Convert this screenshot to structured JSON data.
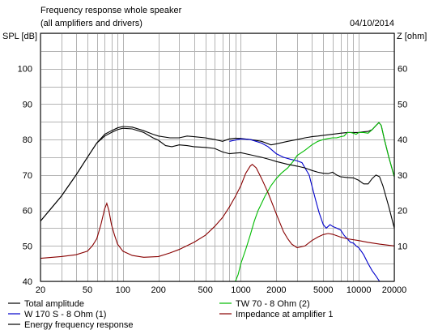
{
  "chart_data": {
    "type": "line",
    "title": "Frequency response whole speaker",
    "subtitle": "(all amplifiers and drivers)",
    "date": "04/10/2014",
    "ylabel_left": "SPL [dB]",
    "ylabel_right": "Z [ohm]",
    "x_scale": "log",
    "xlim": [
      20,
      20000
    ],
    "ylim_left": [
      40,
      110
    ],
    "ylim_right": [
      0,
      70
    ],
    "grid": true,
    "x_ticks": [
      {
        "value": 20,
        "label": "20"
      },
      {
        "value": 50,
        "label": "50"
      },
      {
        "value": 100,
        "label": "100"
      },
      {
        "value": 200,
        "label": "200"
      },
      {
        "value": 500,
        "label": "500"
      },
      {
        "value": 1000,
        "label": "1000"
      },
      {
        "value": 2000,
        "label": "2000"
      },
      {
        "value": 5000,
        "label": "5000"
      },
      {
        "value": 10000,
        "label": "10000"
      },
      {
        "value": 20000,
        "label": "20000"
      }
    ],
    "y_ticks_left": [
      {
        "value": 40,
        "label": "40"
      },
      {
        "value": 50,
        "label": "50"
      },
      {
        "value": 60,
        "label": "60"
      },
      {
        "value": 70,
        "label": "70"
      },
      {
        "value": 80,
        "label": "80"
      },
      {
        "value": 90,
        "label": "90"
      },
      {
        "value": 100,
        "label": "100"
      }
    ],
    "y_ticks_right": [
      {
        "value": 10,
        "label": "10"
      },
      {
        "value": 20,
        "label": "20"
      },
      {
        "value": 30,
        "label": "30"
      },
      {
        "value": 40,
        "label": "40"
      },
      {
        "value": 50,
        "label": "50"
      },
      {
        "value": 60,
        "label": "60"
      }
    ],
    "legend_placement": "bottom",
    "series": [
      {
        "name": "Total amplitude",
        "color": "#000000",
        "axis": "left",
        "points": [
          [
            20,
            57
          ],
          [
            30,
            64
          ],
          [
            40,
            70
          ],
          [
            50,
            75
          ],
          [
            60,
            79
          ],
          [
            70,
            81.5
          ],
          [
            80,
            82.5
          ],
          [
            90,
            83.3
          ],
          [
            100,
            83.7
          ],
          [
            120,
            83.5
          ],
          [
            150,
            82.5
          ],
          [
            180,
            81.5
          ],
          [
            200,
            81
          ],
          [
            250,
            80.5
          ],
          [
            300,
            80.5
          ],
          [
            350,
            81
          ],
          [
            400,
            80.8
          ],
          [
            500,
            80.5
          ],
          [
            600,
            80
          ],
          [
            700,
            79.5
          ],
          [
            800,
            80.2
          ],
          [
            900,
            80.4
          ],
          [
            1000,
            80.3
          ],
          [
            1200,
            80
          ],
          [
            1500,
            79.5
          ],
          [
            1800,
            78.5
          ],
          [
            2000,
            78.8
          ],
          [
            2500,
            79.5
          ],
          [
            3000,
            80
          ],
          [
            3500,
            80.5
          ],
          [
            4000,
            80.8
          ],
          [
            4500,
            81
          ],
          [
            5000,
            81.2
          ],
          [
            6000,
            81.5
          ],
          [
            7000,
            81.8
          ],
          [
            8000,
            82
          ],
          [
            9000,
            82
          ],
          [
            10000,
            82
          ],
          [
            11000,
            82.2
          ],
          [
            12000,
            82.3
          ],
          [
            13000,
            82.8
          ],
          [
            14000,
            84
          ],
          [
            14800,
            84.8
          ],
          [
            15500,
            84
          ],
          [
            16500,
            80
          ],
          [
            18000,
            75
          ],
          [
            20000,
            69.5
          ]
        ]
      },
      {
        "name": "W 170 S - 8 Ohm (1)",
        "color": "#0000cc",
        "axis": "left",
        "points": [
          [
            800,
            79.5
          ],
          [
            1000,
            80.2
          ],
          [
            1200,
            80
          ],
          [
            1500,
            79
          ],
          [
            1700,
            78
          ],
          [
            2000,
            76
          ],
          [
            2300,
            75
          ],
          [
            2600,
            74.5
          ],
          [
            3000,
            74
          ],
          [
            3300,
            73.5
          ],
          [
            3500,
            72
          ],
          [
            3800,
            70
          ],
          [
            4000,
            67
          ],
          [
            4300,
            63
          ],
          [
            4600,
            59.5
          ],
          [
            5000,
            56
          ],
          [
            5300,
            55
          ],
          [
            5700,
            56
          ],
          [
            6000,
            55.5
          ],
          [
            6500,
            55
          ],
          [
            7000,
            54.5
          ],
          [
            7500,
            53
          ],
          [
            8000,
            52
          ],
          [
            8500,
            51
          ],
          [
            9000,
            50.8
          ],
          [
            9500,
            50
          ],
          [
            10000,
            49.5
          ],
          [
            10500,
            48.5
          ],
          [
            11000,
            47.5
          ],
          [
            12000,
            45
          ],
          [
            13000,
            43
          ],
          [
            14000,
            41.5
          ],
          [
            15000,
            40
          ]
        ]
      },
      {
        "name": "TW 70 - 8 Ohm (2)",
        "color": "#00bb00",
        "axis": "left",
        "points": [
          [
            20,
            40
          ],
          [
            900,
            40
          ],
          [
            950,
            42
          ],
          [
            1000,
            45
          ],
          [
            1100,
            49
          ],
          [
            1200,
            53
          ],
          [
            1300,
            57
          ],
          [
            1400,
            60
          ],
          [
            1500,
            62
          ],
          [
            1600,
            64
          ],
          [
            1800,
            67
          ],
          [
            2000,
            69
          ],
          [
            2200,
            70.5
          ],
          [
            2500,
            72
          ],
          [
            2800,
            74
          ],
          [
            3000,
            75.5
          ],
          [
            3500,
            77
          ],
          [
            4000,
            78.5
          ],
          [
            4500,
            79.5
          ],
          [
            5000,
            80
          ],
          [
            5500,
            80.3
          ],
          [
            6000,
            80.5
          ],
          [
            6500,
            80.5
          ],
          [
            7000,
            80.8
          ],
          [
            7500,
            81
          ],
          [
            8000,
            82
          ],
          [
            8500,
            82
          ],
          [
            9000,
            81.8
          ],
          [
            9500,
            81.5
          ],
          [
            10000,
            82
          ],
          [
            11000,
            82
          ],
          [
            12000,
            81.8
          ],
          [
            13000,
            82.8
          ],
          [
            14000,
            84
          ],
          [
            14800,
            84.8
          ],
          [
            15500,
            84
          ],
          [
            16500,
            80
          ],
          [
            18000,
            75
          ],
          [
            20000,
            69.5
          ]
        ]
      },
      {
        "name": "Impedance at amplifier 1",
        "color": "#880000",
        "axis": "right",
        "points": [
          [
            20,
            6.5
          ],
          [
            30,
            7
          ],
          [
            40,
            7.5
          ],
          [
            50,
            8.5
          ],
          [
            55,
            10
          ],
          [
            60,
            12
          ],
          [
            65,
            16
          ],
          [
            70,
            20.5
          ],
          [
            73,
            22
          ],
          [
            76,
            20
          ],
          [
            80,
            16
          ],
          [
            85,
            13
          ],
          [
            90,
            10.5
          ],
          [
            100,
            8.5
          ],
          [
            120,
            7.3
          ],
          [
            150,
            6.8
          ],
          [
            200,
            7
          ],
          [
            250,
            8
          ],
          [
            300,
            9
          ],
          [
            400,
            11
          ],
          [
            500,
            13
          ],
          [
            600,
            15.5
          ],
          [
            700,
            18
          ],
          [
            800,
            21
          ],
          [
            900,
            24
          ],
          [
            1000,
            27
          ],
          [
            1100,
            30.5
          ],
          [
            1200,
            32.5
          ],
          [
            1250,
            33
          ],
          [
            1350,
            32
          ],
          [
            1500,
            29
          ],
          [
            1700,
            25
          ],
          [
            2000,
            19
          ],
          [
            2300,
            14
          ],
          [
            2500,
            12
          ],
          [
            2700,
            10.5
          ],
          [
            3000,
            9.5
          ],
          [
            3500,
            10
          ],
          [
            4000,
            11.5
          ],
          [
            4500,
            12.5
          ],
          [
            5000,
            13.2
          ],
          [
            5500,
            13.5
          ],
          [
            6000,
            13.3
          ],
          [
            7000,
            12.5
          ],
          [
            8000,
            12
          ],
          [
            10000,
            11.5
          ],
          [
            12000,
            11
          ],
          [
            15000,
            10.5
          ],
          [
            20000,
            10
          ]
        ]
      },
      {
        "name": "Energy frequency response",
        "color": "#000000",
        "axis": "left",
        "points": [
          [
            20,
            57
          ],
          [
            30,
            64
          ],
          [
            40,
            70
          ],
          [
            50,
            75
          ],
          [
            60,
            79
          ],
          [
            70,
            81
          ],
          [
            80,
            82
          ],
          [
            90,
            82.8
          ],
          [
            100,
            83.2
          ],
          [
            120,
            83
          ],
          [
            150,
            82
          ],
          [
            180,
            80.5
          ],
          [
            200,
            79.8
          ],
          [
            230,
            78.3
          ],
          [
            260,
            78
          ],
          [
            300,
            78.5
          ],
          [
            350,
            78.3
          ],
          [
            400,
            78
          ],
          [
            500,
            77.8
          ],
          [
            600,
            77.5
          ],
          [
            700,
            76.5
          ],
          [
            800,
            76
          ],
          [
            900,
            76.2
          ],
          [
            1000,
            76.3
          ],
          [
            1200,
            75.7
          ],
          [
            1500,
            75
          ],
          [
            1800,
            74.3
          ],
          [
            2000,
            73.8
          ],
          [
            2500,
            73
          ],
          [
            3000,
            72.5
          ],
          [
            3500,
            72
          ],
          [
            4000,
            71.3
          ],
          [
            4500,
            70.8
          ],
          [
            5000,
            70.5
          ],
          [
            5500,
            70.4
          ],
          [
            6000,
            70.8
          ],
          [
            6500,
            70
          ],
          [
            7000,
            69.5
          ],
          [
            8000,
            69.3
          ],
          [
            9000,
            69.2
          ],
          [
            10000,
            68.5
          ],
          [
            11000,
            67.5
          ],
          [
            12000,
            67.5
          ],
          [
            13000,
            69
          ],
          [
            14000,
            70
          ],
          [
            15000,
            69.5
          ],
          [
            16000,
            67
          ],
          [
            18000,
            61
          ],
          [
            20000,
            55
          ]
        ]
      }
    ]
  }
}
